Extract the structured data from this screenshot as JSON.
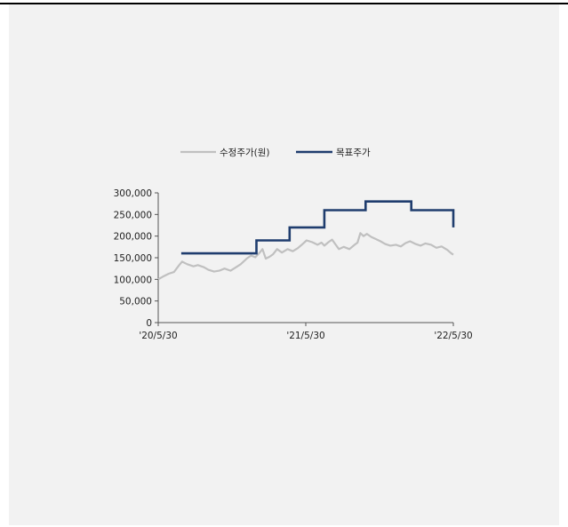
{
  "chart_data": {
    "type": "line",
    "title": "",
    "xlabel": "",
    "ylabel": "",
    "ylim": [
      0,
      300000
    ],
    "yticks": [
      0,
      50000,
      100000,
      150000,
      200000,
      250000,
      300000
    ],
    "ytick_labels": [
      "0",
      "50,000",
      "100,000",
      "150,000",
      "200,000",
      "250,000",
      "300,000"
    ],
    "x_ticks": [
      {
        "date": "2020-05-30",
        "label": "'20/5/30"
      },
      {
        "date": "2021-05-30",
        "label": "'21/5/30"
      },
      {
        "date": "2022-05-30",
        "label": "'22/5/30"
      }
    ],
    "legend_position": "top",
    "series": [
      {
        "name": "수정주가(원)",
        "style": "line",
        "color": "#c0c0c0",
        "points": [
          [
            "2020-05-30",
            100000
          ],
          [
            "2020-06-10",
            106000
          ],
          [
            "2020-06-25",
            113000
          ],
          [
            "2020-07-08",
            117000
          ],
          [
            "2020-07-20",
            132000
          ],
          [
            "2020-07-28",
            141000
          ],
          [
            "2020-08-10",
            135000
          ],
          [
            "2020-08-25",
            130000
          ],
          [
            "2020-09-05",
            133000
          ],
          [
            "2020-09-20",
            128000
          ],
          [
            "2020-10-01",
            122000
          ],
          [
            "2020-10-15",
            118000
          ],
          [
            "2020-10-28",
            120000
          ],
          [
            "2020-11-10",
            125000
          ],
          [
            "2020-11-25",
            120000
          ],
          [
            "2020-12-05",
            126000
          ],
          [
            "2020-12-20",
            135000
          ],
          [
            "2021-01-05",
            149000
          ],
          [
            "2021-01-15",
            155000
          ],
          [
            "2021-01-25",
            151000
          ],
          [
            "2021-02-05",
            162000
          ],
          [
            "2021-02-12",
            170000
          ],
          [
            "2021-02-20",
            148000
          ],
          [
            "2021-03-01",
            152000
          ],
          [
            "2021-03-10",
            158000
          ],
          [
            "2021-03-20",
            170000
          ],
          [
            "2021-04-01",
            162000
          ],
          [
            "2021-04-15",
            170000
          ],
          [
            "2021-04-28",
            165000
          ],
          [
            "2021-05-10",
            172000
          ],
          [
            "2021-05-20",
            180000
          ],
          [
            "2021-06-01",
            190000
          ],
          [
            "2021-06-15",
            186000
          ],
          [
            "2021-06-28",
            180000
          ],
          [
            "2021-07-08",
            185000
          ],
          [
            "2021-07-15",
            178000
          ],
          [
            "2021-07-25",
            186000
          ],
          [
            "2021-08-03",
            192000
          ],
          [
            "2021-08-12",
            180000
          ],
          [
            "2021-08-20",
            170000
          ],
          [
            "2021-09-01",
            175000
          ],
          [
            "2021-09-15",
            170000
          ],
          [
            "2021-09-28",
            180000
          ],
          [
            "2021-10-05",
            185000
          ],
          [
            "2021-10-12",
            207000
          ],
          [
            "2021-10-20",
            200000
          ],
          [
            "2021-10-28",
            205000
          ],
          [
            "2021-11-08",
            198000
          ],
          [
            "2021-11-20",
            193000
          ],
          [
            "2021-12-01",
            188000
          ],
          [
            "2021-12-12",
            182000
          ],
          [
            "2021-12-25",
            178000
          ],
          [
            "2022-01-08",
            180000
          ],
          [
            "2022-01-20",
            176000
          ],
          [
            "2022-02-01",
            184000
          ],
          [
            "2022-02-12",
            188000
          ],
          [
            "2022-02-25",
            182000
          ],
          [
            "2022-03-10",
            178000
          ],
          [
            "2022-03-22",
            183000
          ],
          [
            "2022-04-05",
            180000
          ],
          [
            "2022-04-18",
            173000
          ],
          [
            "2022-05-01",
            176000
          ],
          [
            "2022-05-15",
            168000
          ],
          [
            "2022-05-25",
            160000
          ],
          [
            "2022-05-30",
            157000
          ]
        ]
      },
      {
        "name": "목표주가",
        "style": "step",
        "color": "#1f3d6e",
        "points": [
          [
            "2020-07-26",
            160000
          ],
          [
            "2021-01-28",
            160000
          ],
          [
            "2021-01-28",
            190000
          ],
          [
            "2021-04-20",
            190000
          ],
          [
            "2021-04-20",
            220000
          ],
          [
            "2021-07-15",
            220000
          ],
          [
            "2021-07-15",
            260000
          ],
          [
            "2021-10-25",
            260000
          ],
          [
            "2021-10-25",
            280000
          ],
          [
            "2022-02-15",
            280000
          ],
          [
            "2022-02-15",
            260000
          ],
          [
            "2022-05-30",
            260000
          ],
          [
            "2022-05-30",
            220000
          ]
        ]
      }
    ]
  }
}
